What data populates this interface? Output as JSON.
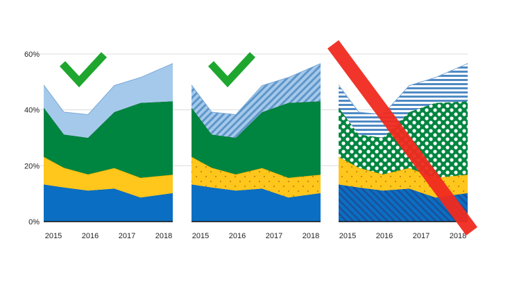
{
  "chart_data": {
    "type": "area",
    "stacked": true,
    "panels": [
      {
        "fill_style": "solid",
        "verdict": "good"
      },
      {
        "fill_style": "pattern-on-light-series",
        "verdict": "good"
      },
      {
        "fill_style": "pattern-on-all-series",
        "verdict": "bad"
      }
    ],
    "x": [
      2015,
      2015.5,
      2016.1,
      2016.75,
      2017.4,
      2018.2
    ],
    "x_ticks": [
      2015,
      2016,
      2017,
      2018
    ],
    "x_tick_labels": [
      "2015",
      "2016",
      "2017",
      "2018"
    ],
    "ylim": [
      0,
      60
    ],
    "y_ticks": [
      0,
      20,
      40,
      60
    ],
    "y_tick_labels": [
      "0%",
      "20%",
      "40%",
      "60%"
    ],
    "grid": true,
    "series": [
      {
        "color": "#0a6fc2",
        "values": [
          13.3,
          12.2,
          11.1,
          11.8,
          8.6,
          10.2
        ]
      },
      {
        "color": "#ffc61c",
        "values": [
          9.9,
          7.1,
          5.8,
          7.4,
          7.1,
          6.6
        ]
      },
      {
        "color": "#008540",
        "values": [
          17.6,
          11.9,
          13.1,
          20.0,
          26.8,
          26.3
        ]
      },
      {
        "color": "#a5c9eb",
        "values": [
          8.1,
          8.0,
          8.3,
          9.5,
          9.1,
          13.5
        ]
      }
    ],
    "check_mark_color": "#1ea62f",
    "cross_out_color": "#f02a1f"
  }
}
